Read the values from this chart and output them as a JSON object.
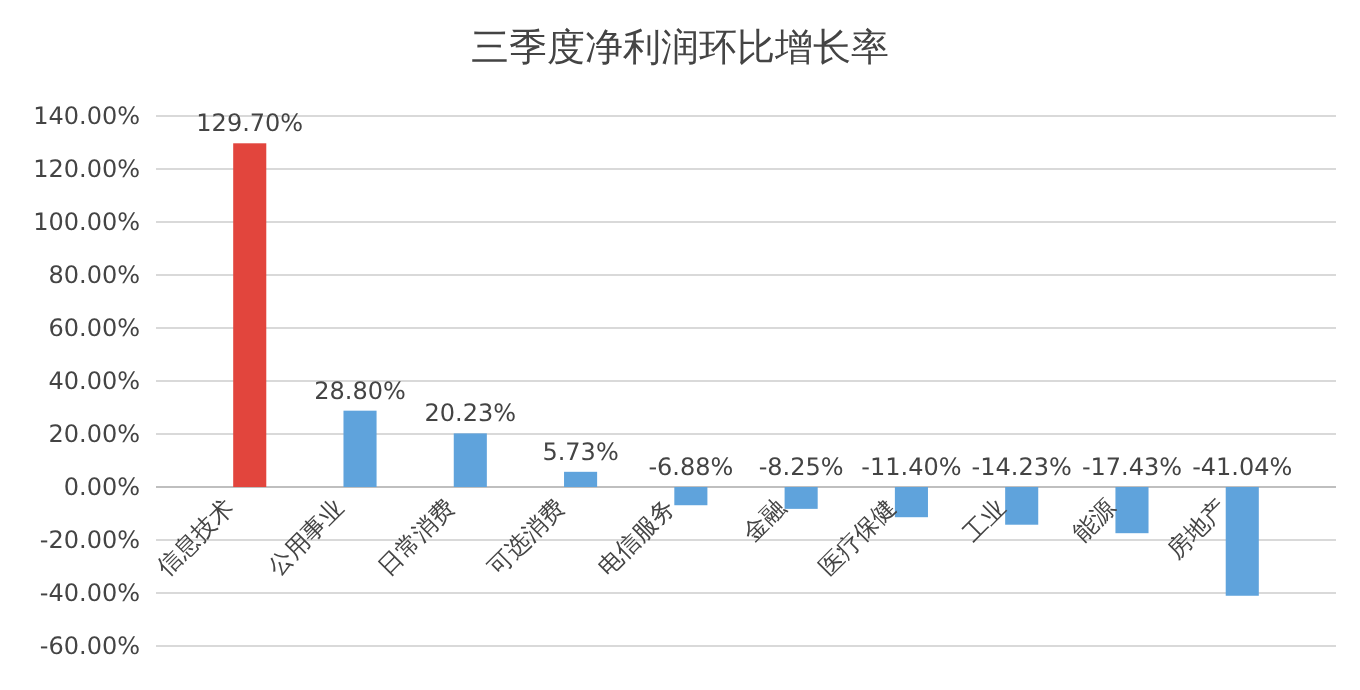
{
  "chart_data": {
    "type": "bar",
    "title": "三季度净利润环比增长率",
    "categories": [
      "信息技术",
      "公用事业",
      "日常消费",
      "可选消费",
      "电信服务",
      "金融",
      "医疗保健",
      "工业",
      "能源",
      "房地产"
    ],
    "values": [
      129.7,
      28.8,
      20.23,
      5.73,
      -6.88,
      -8.25,
      -11.4,
      -14.23,
      -17.43,
      -41.04
    ],
    "colors": [
      "#e2453d",
      "#5fa3dc",
      "#5fa3dc",
      "#5fa3dc",
      "#5fa3dc",
      "#5fa3dc",
      "#5fa3dc",
      "#5fa3dc",
      "#5fa3dc",
      "#5fa3dc"
    ],
    "value_labels": [
      "129.70%",
      "28.80%",
      "20.23%",
      "5.73%",
      "-6.88%",
      "-8.25%",
      "-11.40%",
      "-14.23%",
      "-17.43%",
      "-41.04%"
    ],
    "ylim": [
      -60,
      140
    ],
    "yticks": [
      {
        "value": -60,
        "label": "-60.00%"
      },
      {
        "value": -40,
        "label": "-40.00%"
      },
      {
        "value": -20,
        "label": "-20.00%"
      },
      {
        "value": 0,
        "label": "0.00%"
      },
      {
        "value": 20,
        "label": "20.00%"
      },
      {
        "value": 40,
        "label": "40.00%"
      },
      {
        "value": 60,
        "label": "60.00%"
      },
      {
        "value": 80,
        "label": "80.00%"
      },
      {
        "value": 100,
        "label": "100.00%"
      },
      {
        "value": 120,
        "label": "120.00%"
      },
      {
        "value": 140,
        "label": "140.00%"
      }
    ],
    "grid": "y"
  }
}
